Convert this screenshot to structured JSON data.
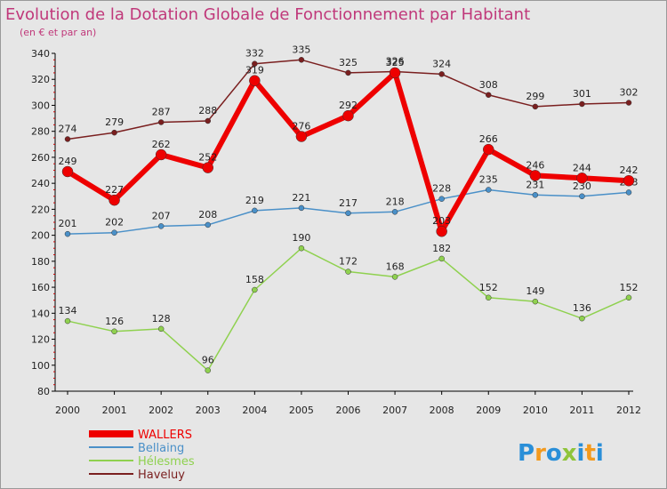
{
  "chart_data": {
    "type": "line",
    "title": "Evolution de la Dotation Globale de Fonctionnement par Habitant",
    "subtitle": "(en € et par an)",
    "xlabel": "",
    "ylabel": "",
    "x": [
      "2000",
      "2001",
      "2002",
      "2003",
      "2004",
      "2005",
      "2006",
      "2007",
      "2008",
      "2009",
      "2010",
      "2011",
      "2012"
    ],
    "ylim": [
      80,
      340
    ],
    "yticks": [
      80,
      100,
      120,
      140,
      160,
      180,
      200,
      220,
      240,
      260,
      280,
      300,
      320,
      340
    ],
    "grid": false,
    "legend_position": "bottom-left",
    "series": [
      {
        "name": "Haveluy",
        "color": "#7a1f1f",
        "values": [
          274,
          279,
          287,
          288,
          332,
          335,
          325,
          326,
          324,
          308,
          299,
          301,
          302
        ]
      },
      {
        "name": "Bellaing",
        "color": "#4a90c8",
        "values": [
          201,
          202,
          207,
          208,
          219,
          221,
          217,
          218,
          228,
          235,
          231,
          230,
          233
        ]
      },
      {
        "name": "Hélesmes",
        "color": "#8fd14f",
        "values": [
          134,
          126,
          128,
          96,
          158,
          190,
          172,
          168,
          182,
          152,
          149,
          136,
          152
        ]
      },
      {
        "name": "WALLERS",
        "color": "#ee0000",
        "values": [
          249,
          227,
          262,
          252,
          319,
          276,
          292,
          325,
          203,
          266,
          246,
          244,
          242
        ]
      }
    ],
    "legend": [
      "WALLERS",
      "Bellaing",
      "Hélesmes",
      "Haveluy"
    ],
    "legend_colors": [
      "#ee0000",
      "#4a90c8",
      "#8fd14f",
      "#7a1f1f"
    ]
  },
  "brand": {
    "logo_parts": [
      "P",
      "r",
      "o",
      "x",
      "i",
      "t",
      "i"
    ],
    "logo_colors": [
      "#2a8fd8",
      "#f39a1e",
      "#2a8fd8",
      "#8fc43a",
      "#2a8fd8",
      "#f39a1e",
      "#2a8fd8"
    ]
  }
}
